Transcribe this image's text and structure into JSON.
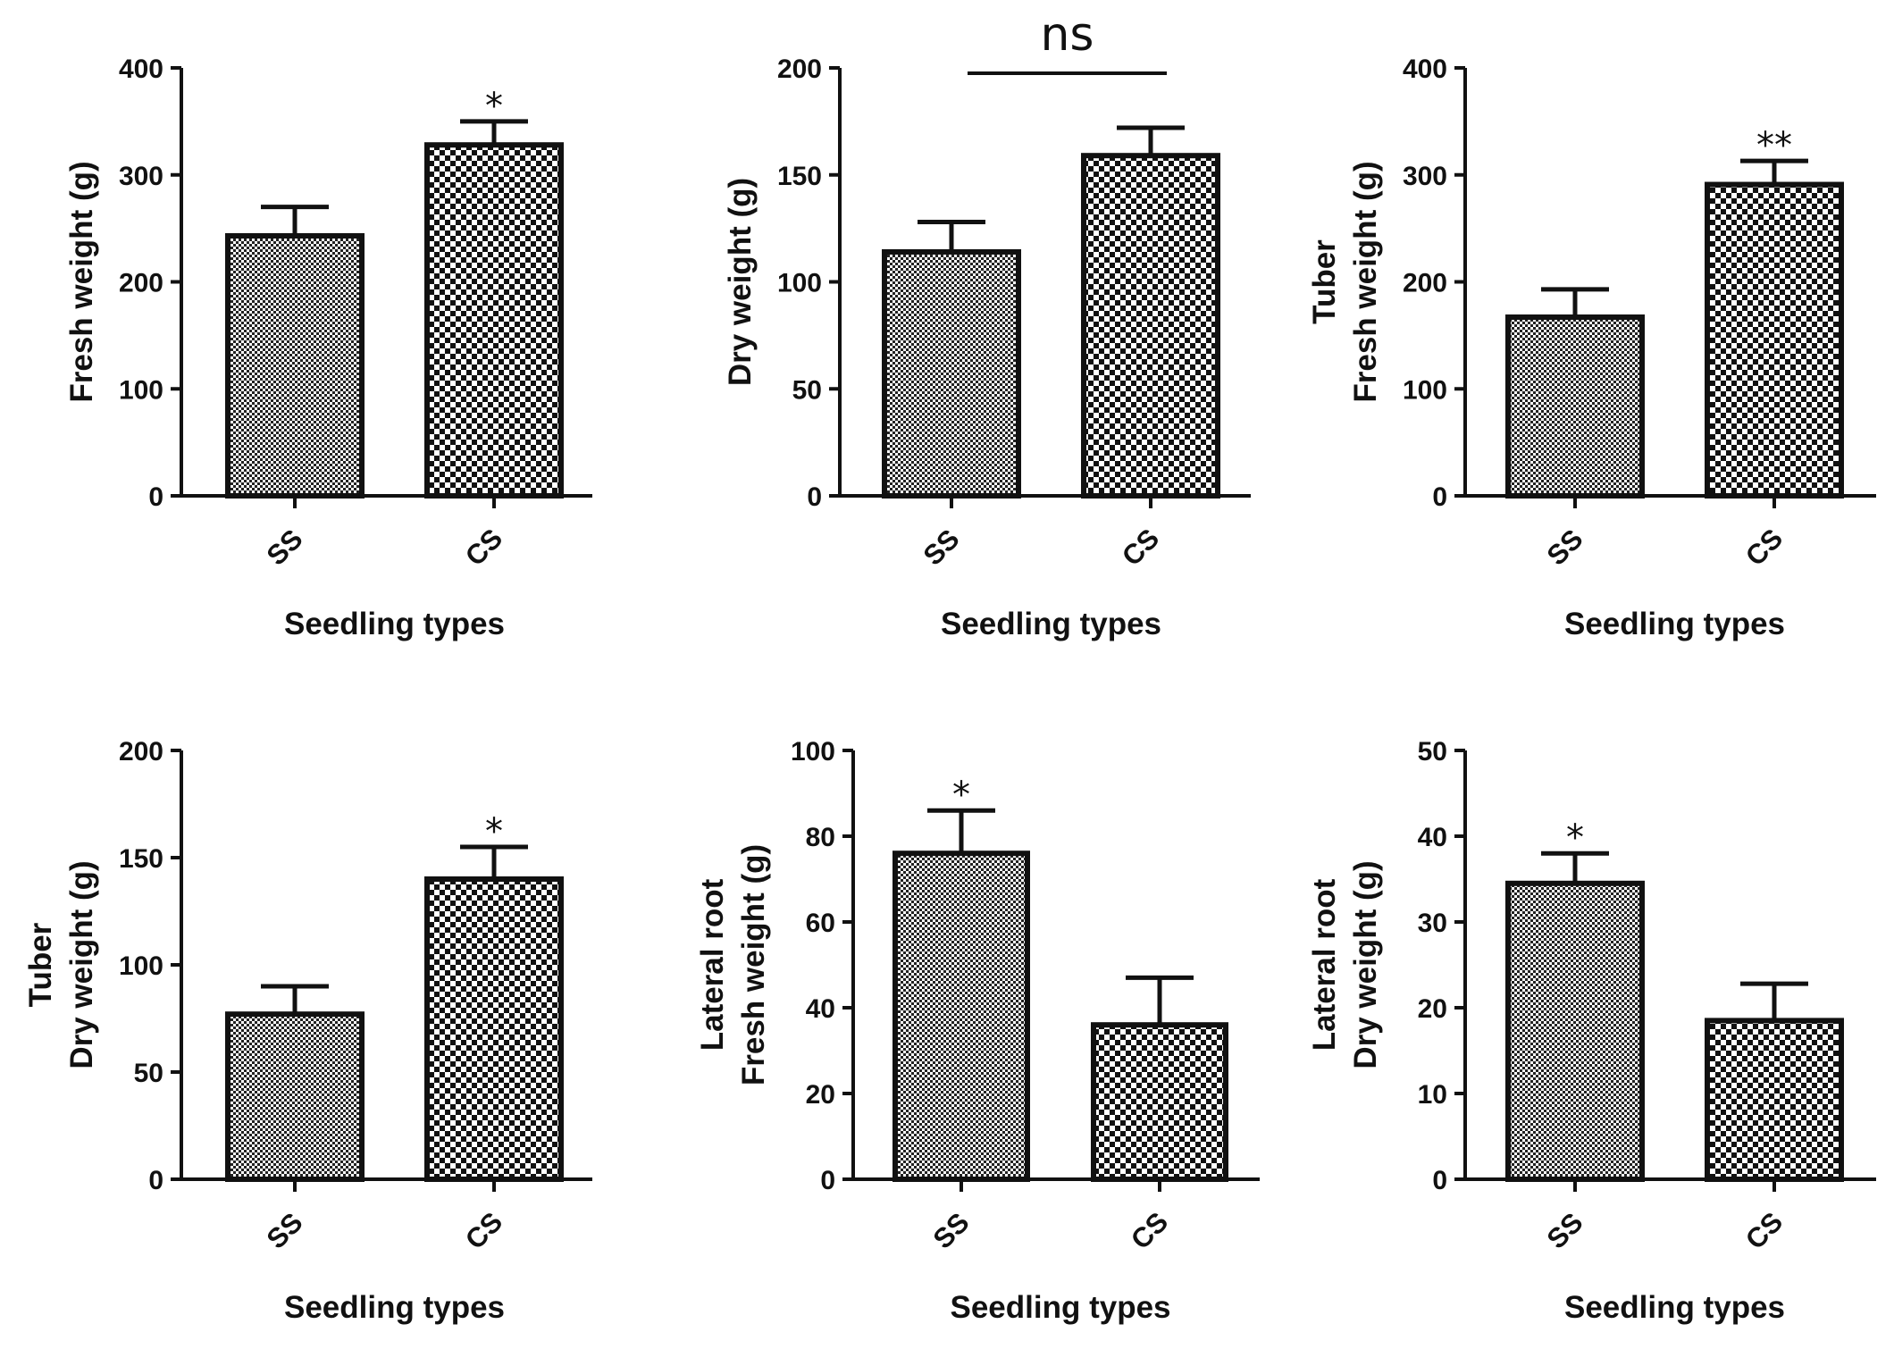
{
  "chart_data": [
    {
      "type": "bar",
      "categories": [
        "SS",
        "CS"
      ],
      "values": [
        243,
        328
      ],
      "errors": [
        27,
        22
      ],
      "ylabel": [
        "Fresh weight (g)"
      ],
      "xlabel": "Seedling types",
      "ylim": [
        0,
        400
      ],
      "yticks": [
        0,
        100,
        200,
        300,
        400
      ],
      "significance": [
        "",
        "*"
      ]
    },
    {
      "type": "bar",
      "categories": [
        "SS",
        "CS"
      ],
      "values": [
        114,
        159
      ],
      "errors": [
        14,
        13
      ],
      "ylabel": [
        "Dry weight (g)"
      ],
      "xlabel": "Seedling types",
      "ylim": [
        0,
        200
      ],
      "yticks": [
        0,
        50,
        100,
        150,
        200
      ],
      "significance": [
        "",
        ""
      ],
      "comparison_label": "ns"
    },
    {
      "type": "bar",
      "categories": [
        "SS",
        "CS"
      ],
      "values": [
        167,
        291
      ],
      "errors": [
        26,
        22
      ],
      "ylabel": [
        "Tuber",
        "Fresh weight (g)"
      ],
      "xlabel": "Seedling types",
      "ylim": [
        0,
        400
      ],
      "yticks": [
        0,
        100,
        200,
        300,
        400
      ],
      "significance": [
        "",
        "**"
      ]
    },
    {
      "type": "bar",
      "categories": [
        "SS",
        "CS"
      ],
      "values": [
        77,
        140
      ],
      "errors": [
        13,
        15
      ],
      "ylabel": [
        "Tuber",
        "Dry weight (g)"
      ],
      "xlabel": "Seedling types",
      "ylim": [
        0,
        200
      ],
      "yticks": [
        0,
        50,
        100,
        150,
        200
      ],
      "significance": [
        "",
        "*"
      ]
    },
    {
      "type": "bar",
      "categories": [
        "SS",
        "CS"
      ],
      "values": [
        76,
        36
      ],
      "errors": [
        10,
        11
      ],
      "ylabel": [
        "Lateral root",
        "Fresh weight (g)"
      ],
      "xlabel": "Seedling types",
      "ylim": [
        0,
        100
      ],
      "yticks": [
        0,
        20,
        40,
        60,
        80,
        100
      ],
      "significance": [
        "*",
        ""
      ]
    },
    {
      "type": "bar",
      "categories": [
        "SS",
        "CS"
      ],
      "values": [
        34.5,
        18.5
      ],
      "errors": [
        3.5,
        4.3
      ],
      "ylabel": [
        "Lateral root",
        "Dry weight (g)"
      ],
      "xlabel": "Seedling types",
      "ylim": [
        0,
        50
      ],
      "yticks": [
        0,
        10,
        20,
        30,
        40,
        50
      ],
      "significance": [
        "*",
        ""
      ]
    }
  ]
}
